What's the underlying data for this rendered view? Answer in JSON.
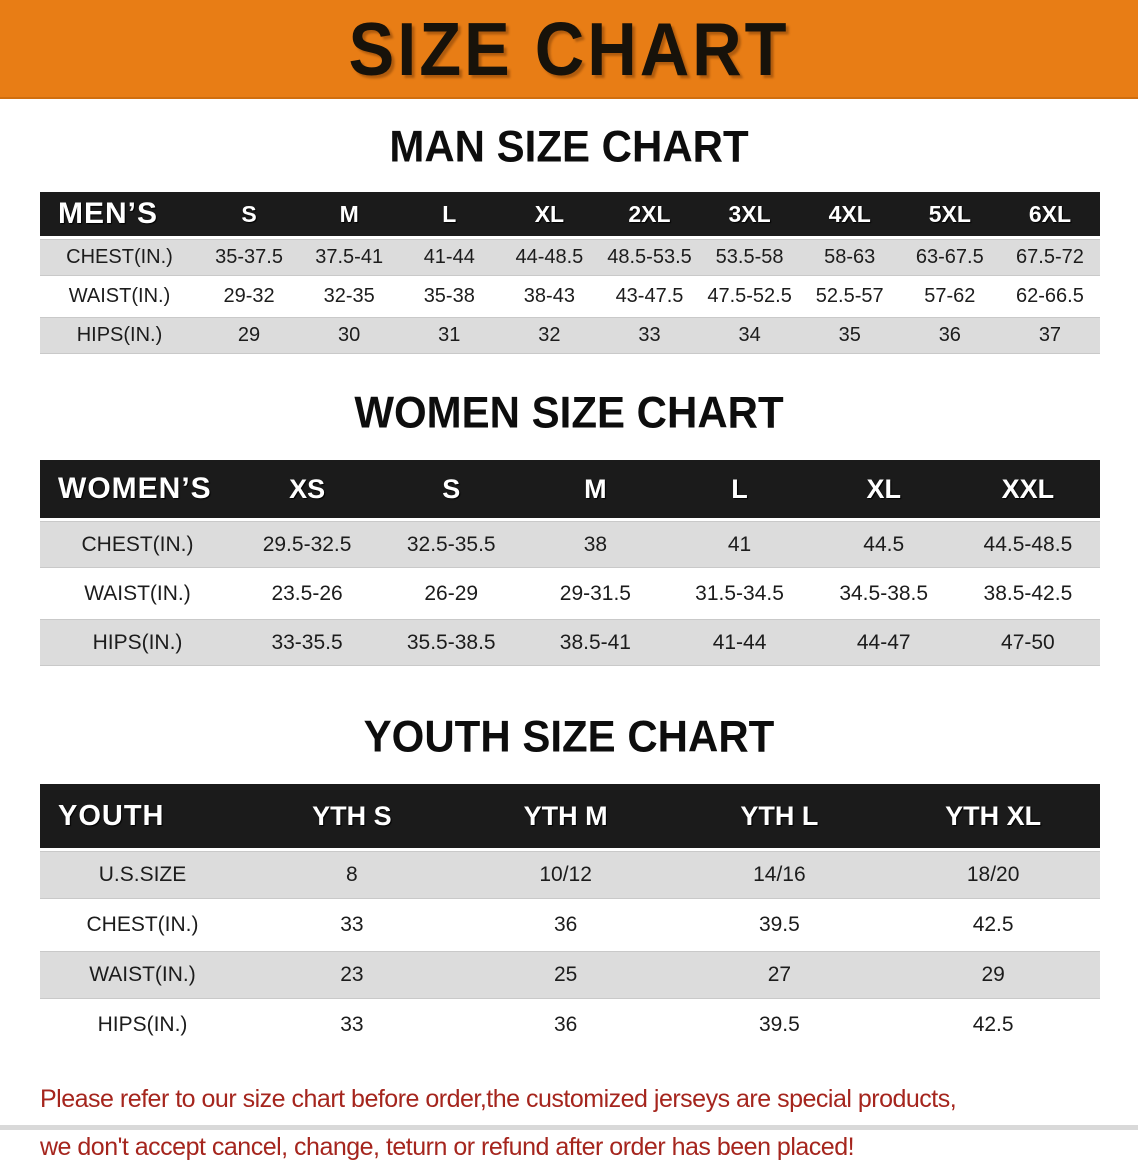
{
  "banner": {
    "title": "SIZE CHART"
  },
  "colors": {
    "banner_orange": "#E87D15",
    "table_header_black": "#1B1B1B",
    "row_gray": "#DCDCDC",
    "row_white": "#FFFFFF",
    "disclaimer_red": "#A5251D"
  },
  "sections": [
    {
      "title": "MAN SIZE CHART",
      "table": {
        "corner": "MEN’S",
        "columns": [
          "S",
          "M",
          "L",
          "XL",
          "2XL",
          "3XL",
          "4XL",
          "5XL",
          "6XL"
        ],
        "rows": [
          {
            "label": "CHEST(IN.)",
            "values": [
              "35-37.5",
              "37.5-41",
              "41-44",
              "44-48.5",
              "48.5-53.5",
              "53.5-58",
              "58-63",
              "63-67.5",
              "67.5-72"
            ]
          },
          {
            "label": "WAIST(IN.)",
            "values": [
              "29-32",
              "32-35",
              "35-38",
              "38-43",
              "43-47.5",
              "47.5-52.5",
              "52.5-57",
              "57-62",
              "62-66.5"
            ]
          },
          {
            "label": "HIPS(IN.)",
            "values": [
              "29",
              "30",
              "31",
              "32",
              "33",
              "34",
              "35",
              "36",
              "37"
            ]
          }
        ]
      }
    },
    {
      "title": "WOMEN SIZE CHART",
      "table": {
        "corner": "WOMEN’S",
        "columns": [
          "XS",
          "S",
          "M",
          "L",
          "XL",
          "XXL"
        ],
        "rows": [
          {
            "label": "CHEST(IN.)",
            "values": [
              "29.5-32.5",
              "32.5-35.5",
              "38",
              "41",
              "44.5",
              "44.5-48.5"
            ]
          },
          {
            "label": "WAIST(IN.)",
            "values": [
              "23.5-26",
              "26-29",
              "29-31.5",
              "31.5-34.5",
              "34.5-38.5",
              "38.5-42.5"
            ]
          },
          {
            "label": "HIPS(IN.)",
            "values": [
              "33-35.5",
              "35.5-38.5",
              "38.5-41",
              "41-44",
              "44-47",
              "47-50"
            ]
          }
        ]
      }
    },
    {
      "title": "YOUTH SIZE CHART",
      "table": {
        "corner": "YOUTH",
        "columns": [
          "YTH S",
          "YTH M",
          "YTH L",
          "YTH XL"
        ],
        "rows": [
          {
            "label": "U.S.SIZE",
            "values": [
              "8",
              "10/12",
              "14/16",
              "18/20"
            ]
          },
          {
            "label": "CHEST(IN.)",
            "values": [
              "33",
              "36",
              "39.5",
              "42.5"
            ]
          },
          {
            "label": "WAIST(IN.)",
            "values": [
              "23",
              "25",
              "27",
              "29"
            ]
          },
          {
            "label": "HIPS(IN.)",
            "values": [
              "33",
              "36",
              "39.5",
              "42.5"
            ]
          }
        ]
      }
    }
  ],
  "disclaimer": {
    "line1": "Please refer to our size chart before order,the customized jerseys are special products,",
    "line2": "we don't accept cancel, change, teturn or refund after order has been placed!"
  }
}
